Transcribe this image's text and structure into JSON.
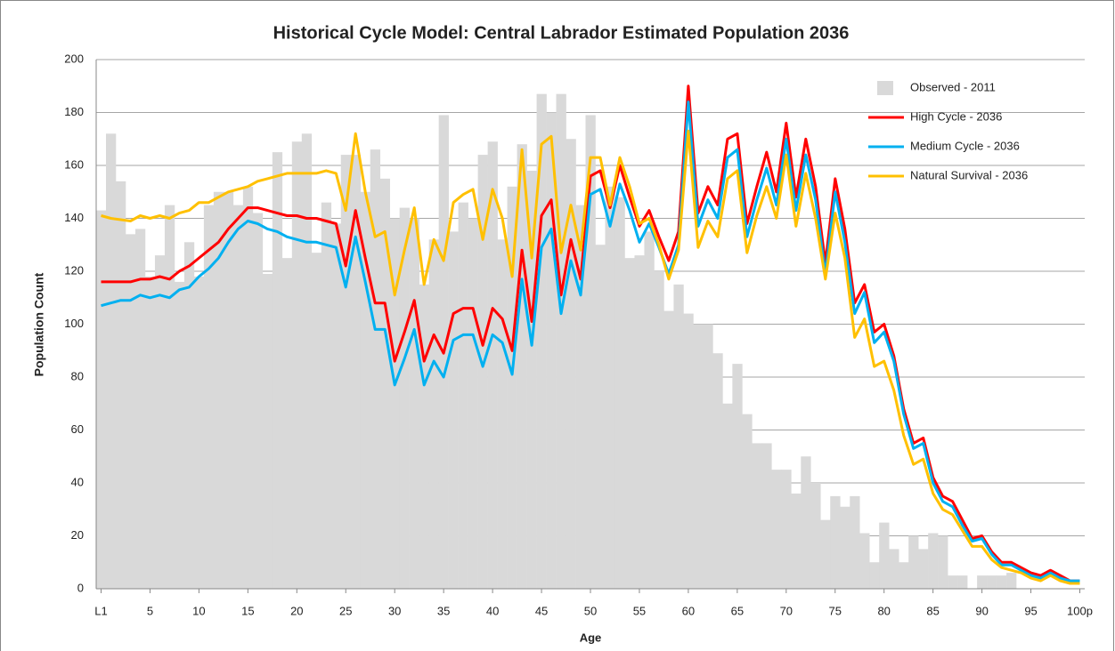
{
  "chart_data": {
    "type": "combo",
    "title": "Historical Cycle Model: Central Labrador Estimated Population  2036",
    "x_label": "Age",
    "y_label": "Population Count",
    "categories": [
      "L1",
      null,
      null,
      null,
      null,
      "5",
      null,
      null,
      null,
      null,
      "10",
      null,
      null,
      null,
      null,
      "15",
      null,
      null,
      null,
      null,
      "20",
      null,
      null,
      null,
      null,
      "25",
      null,
      null,
      null,
      null,
      "30",
      null,
      null,
      null,
      null,
      "35",
      null,
      null,
      null,
      null,
      "40",
      null,
      null,
      null,
      null,
      "45",
      null,
      null,
      null,
      null,
      "50",
      null,
      null,
      null,
      null,
      "55",
      null,
      null,
      null,
      null,
      "60",
      null,
      null,
      null,
      null,
      "65",
      null,
      null,
      null,
      null,
      "70",
      null,
      null,
      null,
      null,
      "75",
      null,
      null,
      null,
      null,
      "80",
      null,
      null,
      null,
      null,
      "85",
      null,
      null,
      null,
      null,
      "90",
      null,
      null,
      null,
      null,
      "95",
      null,
      null,
      null,
      null,
      "100p"
    ],
    "series": [
      {
        "name": "Observed - 2011",
        "type": "bar",
        "color": "#d9d9d9",
        "values": [
          143,
          172,
          154,
          134,
          136,
          118,
          126,
          145,
          116,
          131,
          118,
          145,
          150,
          150,
          145,
          152,
          142,
          119,
          165,
          125,
          169,
          172,
          127,
          146,
          138,
          164,
          164,
          150,
          166,
          155,
          140,
          144,
          140,
          115,
          132,
          179,
          135,
          146,
          140,
          164,
          169,
          132,
          152,
          168,
          158,
          187,
          180,
          187,
          170,
          145,
          179,
          130,
          152,
          148,
          125,
          126,
          135,
          120,
          105,
          115,
          104,
          100,
          100,
          89,
          70,
          85,
          66,
          55,
          55,
          45,
          45,
          36,
          50,
          40,
          26,
          35,
          31,
          35,
          21,
          10,
          25,
          15,
          10,
          20,
          15,
          21,
          20,
          5,
          5,
          0,
          5,
          5,
          5,
          6,
          0,
          0,
          0,
          0,
          0,
          0,
          0
        ]
      },
      {
        "name": "High Cycle - 2036",
        "type": "line",
        "color": "#ff0000",
        "values": [
          116,
          116,
          116,
          116,
          117,
          117,
          118,
          117,
          120,
          122,
          125,
          128,
          131,
          136,
          140,
          144,
          144,
          143,
          142,
          141,
          141,
          140,
          140,
          139,
          138,
          122,
          143,
          125,
          108,
          108,
          86,
          97,
          109,
          86,
          96,
          89,
          104,
          106,
          106,
          92,
          106,
          102,
          90,
          128,
          101,
          141,
          147,
          111,
          132,
          117,
          156,
          158,
          144,
          160,
          148,
          137,
          143,
          133,
          124,
          135,
          190,
          142,
          152,
          145,
          170,
          172,
          138,
          152,
          165,
          150,
          176,
          148,
          170,
          152,
          123,
          155,
          136,
          108,
          115,
          97,
          100,
          88,
          68,
          55,
          57,
          42,
          35,
          33,
          26,
          19,
          20,
          14,
          10,
          10,
          8,
          6,
          5,
          7,
          5,
          3,
          3
        ]
      },
      {
        "name": "Medium Cycle - 2036",
        "type": "line",
        "color": "#00b0f0",
        "values": [
          107,
          108,
          109,
          109,
          111,
          110,
          111,
          110,
          113,
          114,
          118,
          121,
          125,
          131,
          136,
          139,
          138,
          136,
          135,
          133,
          132,
          131,
          131,
          130,
          129,
          114,
          133,
          116,
          98,
          98,
          77,
          87,
          98,
          77,
          86,
          80,
          94,
          96,
          96,
          84,
          96,
          93,
          81,
          117,
          92,
          129,
          136,
          104,
          124,
          111,
          149,
          151,
          137,
          153,
          143,
          131,
          138,
          129,
          119,
          130,
          184,
          137,
          147,
          140,
          163,
          166,
          133,
          147,
          159,
          145,
          170,
          143,
          164,
          147,
          119,
          150,
          131,
          104,
          112,
          93,
          97,
          86,
          66,
          53,
          55,
          40,
          33,
          31,
          24,
          18,
          19,
          13,
          9,
          9,
          7,
          5,
          4,
          6,
          4,
          3,
          3
        ]
      },
      {
        "name": "Natural Survival - 2036",
        "type": "line",
        "color": "#ffc000",
        "values": [
          141,
          140,
          139.5,
          139,
          141,
          140,
          141,
          140,
          142,
          143,
          146,
          146,
          148,
          150,
          151,
          152,
          154,
          155,
          156,
          157,
          157,
          157,
          157,
          158,
          157,
          143,
          172,
          150,
          133,
          135,
          111,
          128,
          144,
          115,
          132,
          124,
          146,
          149,
          151,
          132,
          151,
          140,
          118,
          166,
          125,
          168,
          171,
          127,
          145,
          128,
          163,
          163,
          145,
          163,
          152,
          138,
          140,
          130,
          117,
          128,
          173,
          129,
          139,
          133,
          155,
          158,
          127,
          141,
          152,
          140,
          164,
          137,
          157,
          140,
          117,
          142,
          125,
          95,
          102,
          84,
          86,
          75,
          58,
          47,
          49,
          36,
          30,
          28,
          22,
          16,
          16,
          11,
          8,
          7,
          6,
          4,
          3,
          5,
          3,
          2,
          2
        ]
      }
    ],
    "ylim": [
      0,
      200
    ],
    "yticks": [
      0,
      20,
      40,
      60,
      80,
      100,
      120,
      140,
      160,
      180,
      200
    ],
    "grid": true,
    "legend": "top-right"
  }
}
